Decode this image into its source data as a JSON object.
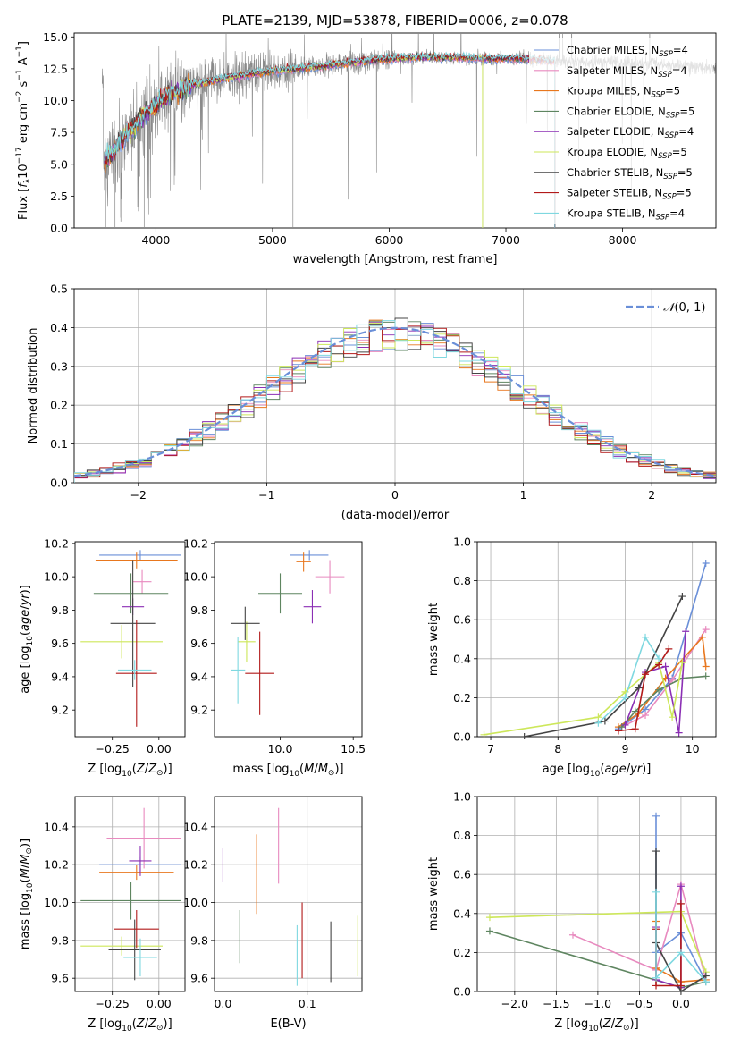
{
  "figure": {
    "title": "PLATE=2139, MJD=53878, FIBERID=0006, z=0.078"
  },
  "colors": {
    "chabrier_miles": "#6a8fd8",
    "salpeter_miles": "#e88abf",
    "kroupa_miles": "#e8771e",
    "chabrier_elodie": "#5e8560",
    "salpeter_elodie": "#8b2fb4",
    "kroupa_elodie": "#cde75a",
    "chabrier_stelib": "#444444",
    "salpeter_stelib": "#b21a1a",
    "kroupa_stelib": "#7fd8e0",
    "data_grey": "#8a8a8a",
    "normal_curve": "#6a8fd8"
  },
  "chart_data": [
    {
      "id": "spectrum",
      "type": "line",
      "title": "PLATE=2139, MJD=53878, FIBERID=0006, z=0.078",
      "xlabel": "wavelength [Angstrom, rest frame]",
      "ylabel": "Flux [f_λ 10^-17 erg cm^-2 s^-1 A^-1]",
      "xlim": [
        3300,
        8800
      ],
      "ylim": [
        0,
        15.3
      ],
      "xticks": [
        4000,
        5000,
        6000,
        7000,
        8000
      ],
      "yticks": [
        0.0,
        2.5,
        5.0,
        7.5,
        10.0,
        12.5,
        15.0
      ],
      "data_flux_envelope": {
        "x": [
          3550,
          3700,
          3900,
          4100,
          4300,
          4500,
          4800,
          5000,
          5300,
          5600,
          5900,
          6200,
          6500,
          6800,
          7100,
          7400,
          7600,
          7900,
          8200,
          8500,
          8800
        ],
        "y": [
          5.0,
          6.8,
          8.9,
          10.4,
          11.2,
          11.6,
          12.1,
          12.3,
          12.6,
          12.9,
          13.2,
          13.4,
          13.4,
          13.3,
          13.3,
          13.1,
          13.1,
          13.0,
          12.9,
          12.7,
          12.6
        ]
      },
      "model_cutoff_wavelength": 7420,
      "kroupa_elodie_cutoff_wavelength": 6800,
      "legend": [
        {
          "label": "Chabrier MILES, N_SSP=4",
          "color_key": "chabrier_miles"
        },
        {
          "label": "Salpeter MILES, N_SSP=4",
          "color_key": "salpeter_miles"
        },
        {
          "label": "Kroupa MILES, N_SSP=5",
          "color_key": "kroupa_miles"
        },
        {
          "label": "Chabrier ELODIE, N_SSP=5",
          "color_key": "chabrier_elodie"
        },
        {
          "label": "Salpeter ELODIE, N_SSP=4",
          "color_key": "salpeter_elodie"
        },
        {
          "label": "Kroupa ELODIE, N_SSP=5",
          "color_key": "kroupa_elodie"
        },
        {
          "label": "Chabrier STELIB, N_SSP=5",
          "color_key": "chabrier_stelib"
        },
        {
          "label": "Salpeter STELIB, N_SSP=5",
          "color_key": "salpeter_stelib"
        },
        {
          "label": "Kroupa STELIB, N_SSP=4",
          "color_key": "kroupa_stelib"
        }
      ]
    },
    {
      "id": "residuals",
      "type": "bar",
      "xlabel": "(data-model)/error",
      "ylabel": "Normed distribution",
      "xlim": [
        -2.5,
        2.5
      ],
      "ylim": [
        0,
        0.5
      ],
      "xticks": [
        -2,
        -1,
        0,
        1,
        2
      ],
      "yticks": [
        0.0,
        0.1,
        0.2,
        0.3,
        0.4,
        0.5
      ],
      "bin_width": 0.1,
      "bin_start": -2.5,
      "legend": "N(0, 1)",
      "series_color_keys": [
        "chabrier_miles",
        "salpeter_miles",
        "kroupa_miles",
        "chabrier_elodie",
        "salpeter_elodie",
        "kroupa_elodie",
        "chabrier_stelib",
        "salpeter_stelib",
        "kroupa_stelib"
      ]
    },
    {
      "id": "z_vs_age",
      "type": "scatter",
      "xlabel": "Z [log10(Z/Z⊙)]",
      "ylabel": "age [log10(age/yr)]",
      "xlim": [
        -0.45,
        0.14
      ],
      "ylim": [
        9.04,
        10.21
      ],
      "xticks": [
        -0.25,
        0.0
      ],
      "yticks": [
        9.2,
        9.4,
        9.6,
        9.8,
        10.0,
        10.2
      ],
      "points": [
        {
          "key": "chabrier_miles",
          "x": -0.1,
          "y": 10.13,
          "xerr": 0.22,
          "yerr": 0.03
        },
        {
          "key": "salpeter_miles",
          "x": -0.09,
          "y": 9.97,
          "xerr": 0.05,
          "yerr": 0.07
        },
        {
          "key": "kroupa_miles",
          "x": -0.12,
          "y": 10.1,
          "xerr": 0.22,
          "yerr": 0.05
        },
        {
          "key": "chabrier_elodie",
          "x": -0.15,
          "y": 9.9,
          "xerr": 0.2,
          "yerr": 0.12
        },
        {
          "key": "salpeter_elodie",
          "x": -0.14,
          "y": 9.82,
          "xerr": 0.06,
          "yerr": 0.05
        },
        {
          "key": "kroupa_elodie",
          "x": -0.2,
          "y": 9.61,
          "xerr": 0.22,
          "yerr": 0.1
        },
        {
          "key": "chabrier_stelib",
          "x": -0.14,
          "y": 9.72,
          "xerr": 0.12,
          "yerr": 0.38
        },
        {
          "key": "salpeter_stelib",
          "x": -0.12,
          "y": 9.42,
          "xerr": 0.11,
          "yerr": 0.32
        },
        {
          "key": "kroupa_stelib",
          "x": -0.13,
          "y": 9.44,
          "xerr": 0.09,
          "yerr": 0.06
        }
      ]
    },
    {
      "id": "mass_vs_age",
      "type": "scatter",
      "xlabel": "mass [log10(M/M⊙)]",
      "ylabel": "",
      "xlim": [
        9.55,
        10.56
      ],
      "ylim": [
        9.04,
        10.21
      ],
      "xticks": [
        10.0,
        10.5
      ],
      "yticks": [
        9.2,
        9.4,
        9.6,
        9.8,
        10.0,
        10.2
      ],
      "points": [
        {
          "key": "chabrier_miles",
          "x": 10.2,
          "y": 10.13,
          "xerr": 0.13,
          "yerr": 0.03
        },
        {
          "key": "salpeter_miles",
          "x": 10.34,
          "y": 10.0,
          "xerr": 0.1,
          "yerr": 0.1
        },
        {
          "key": "kroupa_miles",
          "x": 10.16,
          "y": 10.09,
          "xerr": 0.05,
          "yerr": 0.06
        },
        {
          "key": "chabrier_elodie",
          "x": 10.0,
          "y": 9.9,
          "xerr": 0.15,
          "yerr": 0.12
        },
        {
          "key": "salpeter_elodie",
          "x": 10.22,
          "y": 9.82,
          "xerr": 0.06,
          "yerr": 0.1
        },
        {
          "key": "kroupa_elodie",
          "x": 9.77,
          "y": 9.61,
          "xerr": 0.06,
          "yerr": 0.12
        },
        {
          "key": "chabrier_stelib",
          "x": 9.76,
          "y": 9.72,
          "xerr": 0.1,
          "yerr": 0.1
        },
        {
          "key": "salpeter_stelib",
          "x": 9.86,
          "y": 9.42,
          "xerr": 0.1,
          "yerr": 0.25
        },
        {
          "key": "kroupa_stelib",
          "x": 9.71,
          "y": 9.44,
          "xerr": 0.05,
          "yerr": 0.2
        }
      ]
    },
    {
      "id": "age_weights",
      "type": "line",
      "xlabel": "age [log10(age/yr)]",
      "ylabel": "mass weight",
      "xlim": [
        6.8,
        10.35
      ],
      "ylim": [
        0,
        1.0
      ],
      "xticks": [
        7,
        8,
        9,
        10
      ],
      "yticks": [
        0.0,
        0.2,
        0.4,
        0.6,
        0.8,
        1.0
      ],
      "series": [
        {
          "key": "chabrier_miles",
          "x": [
            8.9,
            9.3,
            9.7,
            10.2
          ],
          "y": [
            0.04,
            0.14,
            0.3,
            0.89
          ]
        },
        {
          "key": "salpeter_miles",
          "x": [
            8.95,
            9.3,
            9.7,
            10.2
          ],
          "y": [
            0.05,
            0.11,
            0.29,
            0.55
          ]
        },
        {
          "key": "kroupa_miles",
          "x": [
            8.9,
            9.2,
            9.6,
            10.15,
            10.2
          ],
          "y": [
            0.05,
            0.12,
            0.3,
            0.51,
            0.36
          ]
        },
        {
          "key": "chabrier_elodie",
          "x": [
            8.95,
            9.15,
            9.5,
            9.85,
            10.2
          ],
          "y": [
            0.05,
            0.13,
            0.24,
            0.3,
            0.31
          ]
        },
        {
          "key": "salpeter_elodie",
          "x": [
            9.0,
            9.3,
            9.6,
            9.8,
            9.9
          ],
          "y": [
            0.06,
            0.33,
            0.36,
            0.02,
            0.54
          ]
        },
        {
          "key": "kroupa_elodie",
          "x": [
            6.9,
            8.6,
            9.0,
            9.5,
            9.7,
            9.85
          ],
          "y": [
            0.01,
            0.1,
            0.23,
            0.38,
            0.1,
            0.38
          ]
        },
        {
          "key": "chabrier_stelib",
          "x": [
            7.5,
            8.7,
            9.2,
            9.85
          ],
          "y": [
            0.0,
            0.08,
            0.25,
            0.72
          ]
        },
        {
          "key": "salpeter_stelib",
          "x": [
            8.9,
            9.15,
            9.3,
            9.5,
            9.65
          ],
          "y": [
            0.03,
            0.04,
            0.32,
            0.37,
            0.45
          ]
        },
        {
          "key": "kroupa_stelib",
          "x": [
            8.6,
            9.0,
            9.3,
            9.5
          ],
          "y": [
            0.07,
            0.2,
            0.51,
            0.4
          ]
        }
      ]
    },
    {
      "id": "z_vs_mass",
      "type": "scatter",
      "xlabel": "Z [log10(Z/Z⊙)]",
      "ylabel": "mass [log10(M/M⊙)]",
      "xlim": [
        -0.45,
        0.14
      ],
      "ylim": [
        9.53,
        10.56
      ],
      "xticks": [
        -0.25,
        0.0
      ],
      "yticks": [
        9.6,
        9.8,
        10.0,
        10.2,
        10.4
      ],
      "points": [
        {
          "key": "chabrier_miles",
          "x": -0.1,
          "y": 10.2,
          "xerr": 0.22,
          "yerr": 0.04
        },
        {
          "key": "salpeter_miles",
          "x": -0.08,
          "y": 10.34,
          "xerr": 0.2,
          "yerr": 0.16
        },
        {
          "key": "kroupa_miles",
          "x": -0.12,
          "y": 10.16,
          "xerr": 0.2,
          "yerr": 0.04
        },
        {
          "key": "chabrier_elodie",
          "x": -0.15,
          "y": 10.01,
          "xerr": 0.27,
          "yerr": 0.1
        },
        {
          "key": "salpeter_elodie",
          "x": -0.1,
          "y": 10.22,
          "xerr": 0.06,
          "yerr": 0.08
        },
        {
          "key": "kroupa_elodie",
          "x": -0.2,
          "y": 9.77,
          "xerr": 0.22,
          "yerr": 0.05
        },
        {
          "key": "chabrier_stelib",
          "x": -0.13,
          "y": 9.75,
          "xerr": 0.14,
          "yerr": 0.16
        },
        {
          "key": "salpeter_stelib",
          "x": -0.12,
          "y": 9.86,
          "xerr": 0.12,
          "yerr": 0.1
        },
        {
          "key": "kroupa_stelib",
          "x": -0.1,
          "y": 9.71,
          "xerr": 0.09,
          "yerr": 0.1
        }
      ]
    },
    {
      "id": "ebv_vs_mass",
      "type": "scatter",
      "xlabel": "E(B-V)",
      "ylabel": "",
      "xlim": [
        -0.01,
        0.165
      ],
      "ylim": [
        9.53,
        10.56
      ],
      "xticks": [
        0.0,
        0.1
      ],
      "yticks": [
        9.6,
        9.8,
        10.0,
        10.2,
        10.4
      ],
      "points": [
        {
          "key": "salpeter_elodie",
          "x": 0.0,
          "y": 10.2,
          "xerr": 0.0,
          "yerr": 0.09
        },
        {
          "key": "chabrier_elodie",
          "x": 0.02,
          "y": 9.82,
          "xerr": 0.0,
          "yerr": 0.14
        },
        {
          "key": "kroupa_miles",
          "x": 0.04,
          "y": 10.15,
          "xerr": 0.0,
          "yerr": 0.21
        },
        {
          "key": "salpeter_miles",
          "x": 0.066,
          "y": 10.3,
          "xerr": 0.0,
          "yerr": 0.2
        },
        {
          "key": "kroupa_stelib",
          "x": 0.088,
          "y": 9.72,
          "xerr": 0.0,
          "yerr": 0.16
        },
        {
          "key": "salpeter_stelib",
          "x": 0.094,
          "y": 9.8,
          "xerr": 0.0,
          "yerr": 0.2
        },
        {
          "key": "chabrier_stelib",
          "x": 0.128,
          "y": 9.74,
          "xerr": 0.0,
          "yerr": 0.16
        },
        {
          "key": "kroupa_elodie",
          "x": 0.16,
          "y": 9.77,
          "xerr": 0.0,
          "yerr": 0.16
        }
      ]
    },
    {
      "id": "z_weights",
      "type": "line",
      "xlabel": "Z [log10(Z/Z⊙)]",
      "ylabel": "mass weight",
      "xlim": [
        -2.45,
        0.42
      ],
      "ylim": [
        0,
        1.0
      ],
      "xticks": [
        -2.0,
        -1.5,
        -1.0,
        -0.5,
        0.0
      ],
      "yticks": [
        0.0,
        0.2,
        0.4,
        0.6,
        0.8,
        1.0
      ],
      "series": [
        {
          "key": "chabrier_miles",
          "x": [
            -0.3,
            -0.3,
            0.0,
            0.3
          ],
          "y": [
            0.9,
            0.2,
            0.3,
            0.05
          ]
        },
        {
          "key": "salpeter_miles",
          "x": [
            -1.3,
            -0.3,
            0.0,
            0.3
          ],
          "y": [
            0.29,
            0.11,
            0.55,
            0.06
          ]
        },
        {
          "key": "kroupa_miles",
          "x": [
            -0.3,
            -0.3,
            0.0,
            0.3
          ],
          "y": [
            0.36,
            0.12,
            0.05,
            0.06
          ]
        },
        {
          "key": "chabrier_elodie",
          "x": [
            -2.3,
            0.0,
            0.3
          ],
          "y": [
            0.31,
            0.02,
            0.05
          ]
        },
        {
          "key": "salpeter_elodie",
          "x": [
            -0.3,
            -0.3,
            0.0,
            0.0
          ],
          "y": [
            0.33,
            0.06,
            0.02,
            0.54
          ]
        },
        {
          "key": "kroupa_elodie",
          "x": [
            -2.3,
            0.0,
            0.3
          ],
          "y": [
            0.38,
            0.41,
            0.1
          ]
        },
        {
          "key": "chabrier_stelib",
          "x": [
            -0.3,
            -0.3,
            0.0,
            0.3
          ],
          "y": [
            0.72,
            0.25,
            0.0,
            0.08
          ]
        },
        {
          "key": "salpeter_stelib",
          "x": [
            -0.3,
            -0.3,
            0.0,
            0.0
          ],
          "y": [
            0.32,
            0.03,
            0.03,
            0.45
          ]
        },
        {
          "key": "kroupa_stelib",
          "x": [
            -0.3,
            -0.3,
            0.0,
            0.3
          ],
          "y": [
            0.51,
            0.07,
            0.2,
            0.05
          ]
        }
      ]
    }
  ]
}
